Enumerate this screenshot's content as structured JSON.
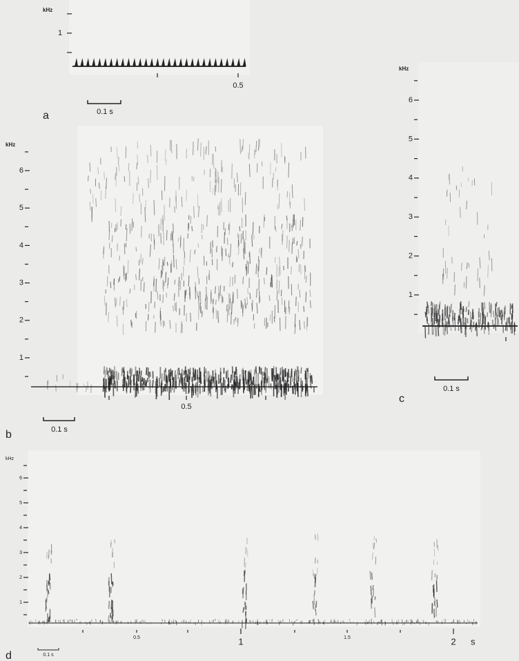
{
  "panels": [
    {
      "label": "a",
      "unit": "kHz",
      "yticks": [
        "1"
      ],
      "xticks": [
        "0.5"
      ],
      "scale_bar": "0.1 s"
    },
    {
      "label": "b",
      "unit": "kHz",
      "yticks": [
        "6",
        "5",
        "4",
        "3",
        "2",
        "1"
      ],
      "xticks": [
        "0.5"
      ],
      "scale_bar": "0.1 s"
    },
    {
      "label": "c",
      "unit": "kHz",
      "yticks": [
        "6",
        "5",
        "4",
        "3",
        "2",
        "1"
      ],
      "scale_bar": "0.1 s"
    },
    {
      "label": "d",
      "unit": "kHz",
      "yticks": [
        "6",
        "5",
        "4",
        "3",
        "2",
        "1"
      ],
      "xticks": [
        "0.5",
        "1",
        "1.5",
        "2"
      ],
      "x_unit": "s",
      "scale_bar": "0.1 s"
    }
  ]
}
